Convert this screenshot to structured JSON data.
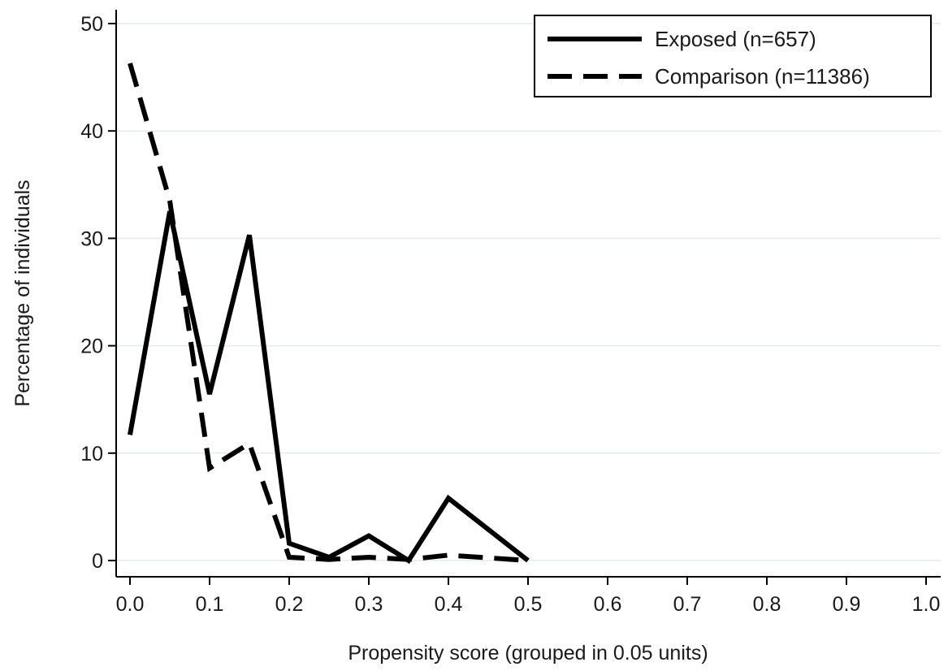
{
  "chart_data": {
    "type": "line",
    "title": "",
    "xlabel": "Propensity score (grouped in 0.05 units)",
    "ylabel": "Percentage of individuals",
    "xlim": [
      0.0,
      1.0
    ],
    "ylim": [
      0,
      50
    ],
    "x_ticks": [
      "0.0",
      "0.1",
      "0.2",
      "0.3",
      "0.4",
      "0.5",
      "0.6",
      "0.7",
      "0.8",
      "0.9",
      "1.0"
    ],
    "y_ticks": [
      "0",
      "10",
      "20",
      "30",
      "40",
      "50"
    ],
    "grid": true,
    "legend_position": "top-right",
    "series": [
      {
        "name": "Exposed (n=657)",
        "line_style": "solid",
        "color": "#000000",
        "x": [
          0.0,
          0.05,
          0.1,
          0.15,
          0.2,
          0.25,
          0.3,
          0.35,
          0.4,
          0.5
        ],
        "y": [
          11.7,
          32.5,
          15.5,
          30.3,
          1.6,
          0.3,
          2.3,
          0.0,
          5.8,
          0.0
        ]
      },
      {
        "name": "Comparison (n=11386)",
        "line_style": "dashed",
        "color": "#000000",
        "x": [
          0.0,
          0.05,
          0.1,
          0.15,
          0.2,
          0.25,
          0.3,
          0.35,
          0.4,
          0.5
        ],
        "y": [
          46.3,
          33.5,
          8.6,
          10.9,
          0.3,
          0.1,
          0.3,
          0.1,
          0.5,
          0.0
        ]
      }
    ]
  }
}
